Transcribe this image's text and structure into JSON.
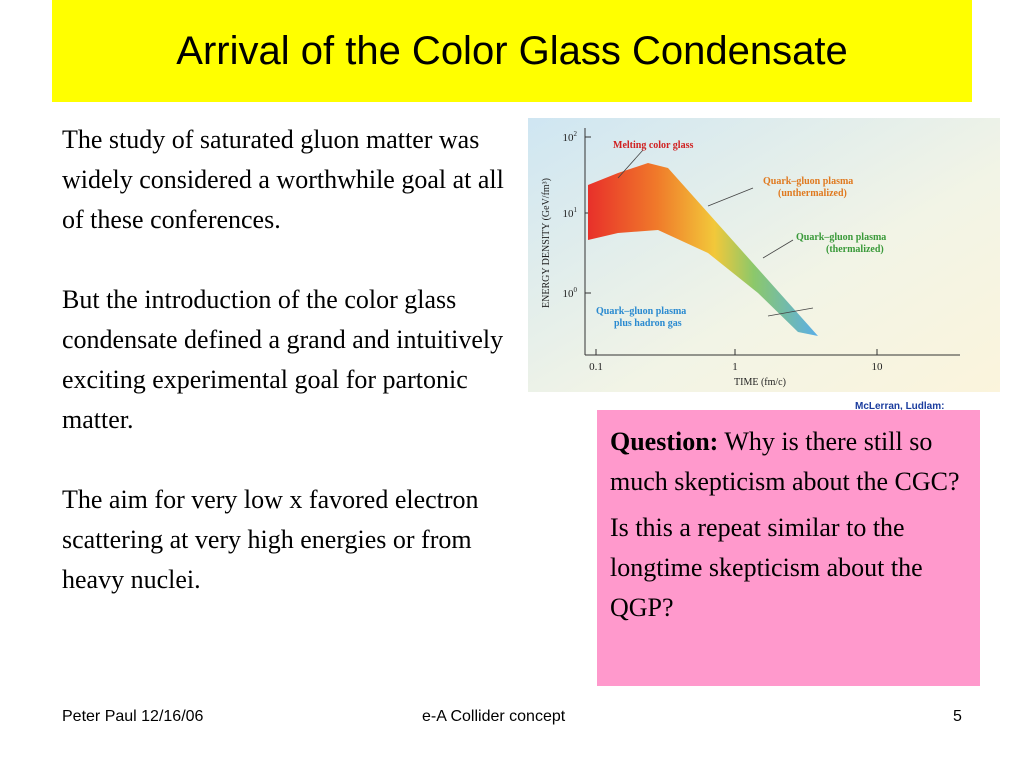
{
  "header": {
    "title": "Arrival of the Color Glass Condensate"
  },
  "body": {
    "paragraphs": [
      "The study of saturated gluon matter was widely considered a worthwhile goal at all of these conferences.",
      "But the introduction of the color glass condensate defined a grand and intuitively exciting experimental goal for partonic matter.",
      "The aim for very low x favored electron scattering at very high energies or from heavy nuclei."
    ]
  },
  "figure": {
    "y_axis_label": "ENERGY DENSITY (GeV/fm³)",
    "x_axis_label": "TIME (fm/c)",
    "y_tick_labels": [
      {
        "base": "10",
        "exp": "2"
      },
      {
        "base": "10",
        "exp": "1"
      },
      {
        "base": "10",
        "exp": "0"
      }
    ],
    "x_tick_labels": [
      "0.1",
      "1",
      "10"
    ],
    "annotations": [
      "Melting color glass",
      "Quark–gluon plasma",
      "(unthermalized)",
      "Quark–gluon plasma",
      "(thermalized)",
      "Quark–gluon plasma",
      "plus hadron gas"
    ],
    "credit": "McLerran, Ludlam:"
  },
  "question_box": {
    "label": "Question:",
    "question": "Why is there still so much skepticism about the CGC?",
    "followup": "Is this a repeat similar to the longtime skepticism about the QGP?"
  },
  "footer": {
    "left": "Peter Paul 12/16/06",
    "center": "e-A Collider concept",
    "right": "5"
  }
}
